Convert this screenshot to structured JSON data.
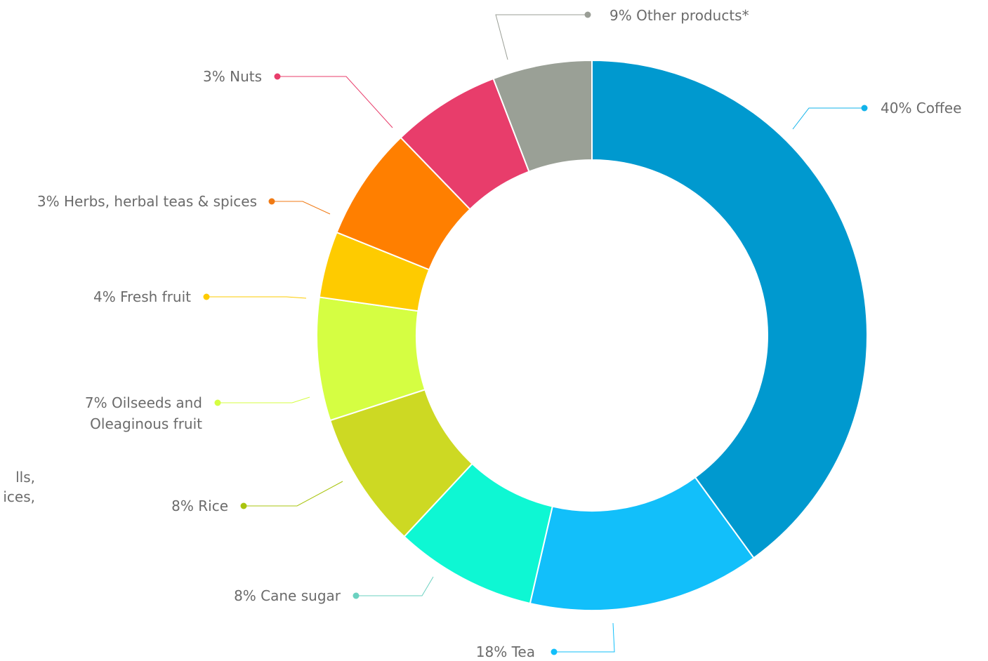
{
  "chart_data": {
    "type": "pie",
    "variant": "donut",
    "slices": [
      {
        "label": "40% Coffee",
        "value": 40,
        "color": "#0099cf",
        "dot": "#12b3ea"
      },
      {
        "label": "18% Tea",
        "value": 18,
        "color": "#12bffa",
        "dot": "#12bffa"
      },
      {
        "label": "8% Cane sugar",
        "value": 8,
        "color": "#0ef7d3",
        "dot": "#6bd1c0"
      },
      {
        "label": "8% Rice",
        "value": 8,
        "color": "#cdd923",
        "dot": "#a9c40f"
      },
      {
        "label": "7% Oilseeds and|Oleaginous fruit",
        "value": 7,
        "color": "#d5fe42",
        "dot": "#d5fe42"
      },
      {
        "label": "4% Fresh fruit",
        "value": 4,
        "color": "#fecb00",
        "dot": "#fecb00"
      },
      {
        "label": "3% Herbs, herbal teas & spices",
        "value": 3,
        "color": "#ff7f00",
        "dot": "#f07a14"
      },
      {
        "label": "3% Nuts",
        "value": 3,
        "color": "#e83d6b",
        "dot": "#e83d6b"
      },
      {
        "label": "9% Other products*",
        "value": 9,
        "color": "#9aa096",
        "dot": "#9a9e96"
      }
    ],
    "cut_off_text": "lls,|ices,"
  }
}
